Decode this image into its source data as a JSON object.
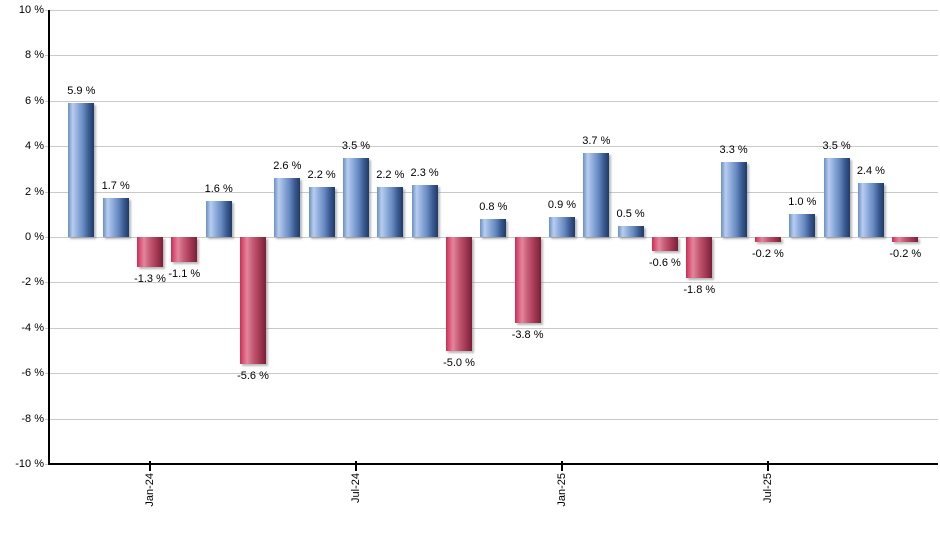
{
  "chart_data": {
    "type": "bar",
    "title": "",
    "xlabel": "",
    "ylabel": "",
    "unit": "%",
    "ylim": [
      -10,
      10
    ],
    "grid": true,
    "legend": null,
    "values": [
      5.9,
      1.7,
      -1.3,
      -1.1,
      1.6,
      -5.6,
      2.6,
      2.2,
      3.5,
      2.2,
      2.3,
      -5.0,
      0.8,
      -3.8,
      0.9,
      3.7,
      0.5,
      -0.6,
      -1.8,
      3.3,
      -0.2,
      1.0,
      3.5,
      2.4,
      -0.2
    ],
    "bar_labels": [
      "5.9 %",
      "1.7 %",
      "-1.3 %",
      "-1.1 %",
      "1.6 %",
      "-5.6 %",
      "2.6 %",
      "2.2 %",
      "3.5 %",
      "2.2 %",
      "2.3 %",
      "-5.0 %",
      "0.8 %",
      "-3.8 %",
      "0.9 %",
      "3.7 %",
      "0.5 %",
      "-0.6 %",
      "-1.8 %",
      "3.3 %",
      "-0.2 %",
      "1.0 %",
      "3.5 %",
      "2.4 %",
      "-0.2 %"
    ],
    "x_ticks": [
      {
        "label": "Jan-24",
        "bar_index": 2
      },
      {
        "label": "Jul-24",
        "bar_index": 8
      },
      {
        "label": "Jan-25",
        "bar_index": 14
      },
      {
        "label": "Jul-25",
        "bar_index": 20
      }
    ],
    "y_tick_labels": [
      "10 %",
      "8 %",
      "6 %",
      "4 %",
      "2 %",
      "0 %",
      "-2 %",
      "-4 %",
      "-6 %",
      "-8 %",
      "-10 %"
    ],
    "y_tick_values": [
      10,
      8,
      6,
      4,
      2,
      0,
      -2,
      -4,
      -6,
      -8,
      -10
    ],
    "colors": {
      "positive_bar_gradient": [
        "#6b90c4 0%",
        "#b7cdee 18%",
        "#8aa8d8 40%",
        "#6488bf 60%",
        "#3b5a92 80%",
        "#1e3a66 100%"
      ],
      "negative_bar_gradient": [
        "#c72e52 0%",
        "#dd5376 12%",
        "#e0879c 27%",
        "#c75c77 48%",
        "#a93c58 72%",
        "#7a1f38 100%"
      ],
      "gridline": "#c9c9c9",
      "axis": "#000000",
      "text": "#000000",
      "background": "#ffffff"
    }
  }
}
